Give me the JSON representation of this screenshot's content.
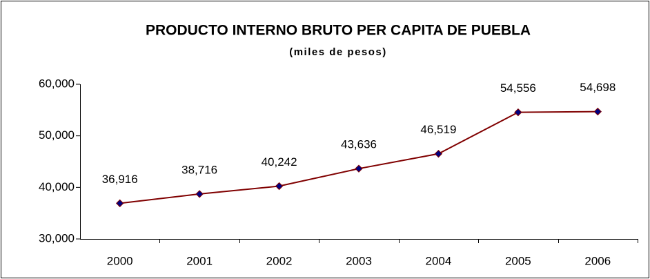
{
  "chart_data": {
    "type": "line",
    "title": "PRODUCTO INTERNO BRUTO PER CAPITA DE PUEBLA",
    "subtitle": "(miles de pesos)",
    "categories": [
      "2000",
      "2001",
      "2002",
      "2003",
      "2004",
      "2005",
      "2006"
    ],
    "values": [
      36916,
      38716,
      40242,
      43636,
      46519,
      54556,
      54698
    ],
    "value_labels": [
      "36,916",
      "38,716",
      "40,242",
      "43,636",
      "46,519",
      "54,556",
      "54,698"
    ],
    "color": "#800000",
    "marker_color": "#000080",
    "ylim": [
      30000,
      60000
    ],
    "yticks": [
      {
        "value": 30000,
        "label": "30,000"
      },
      {
        "value": 40000,
        "label": "40,000"
      },
      {
        "value": 50000,
        "label": "50,000"
      },
      {
        "value": 60000,
        "label": "60,000"
      }
    ],
    "grid": false
  }
}
